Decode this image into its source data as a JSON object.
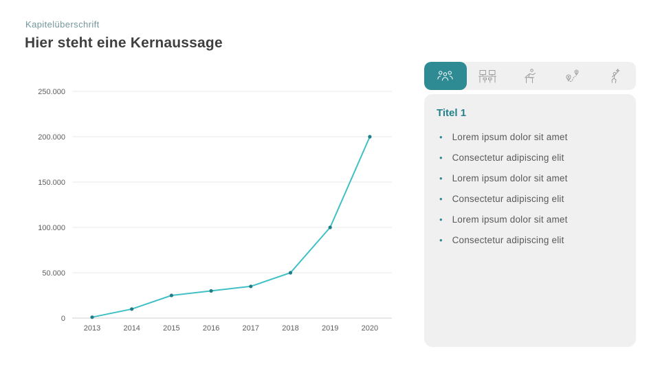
{
  "colors": {
    "accent_teal": "#2E8A93",
    "accent_teal_dark": "#23818C",
    "chart_line": "#3FBFC6",
    "chart_marker": "#1F7E86",
    "eyebrow_text": "#72969B",
    "title_text": "#3F3F3F",
    "body_text": "#595959",
    "panel_bg": "#F0F0F0",
    "gridline": "#EAEAEA",
    "baseline": "#CFCFCF"
  },
  "header": {
    "eyebrow": "Kapitelüberschrift",
    "title": "Hier steht eine Kernaussage"
  },
  "chart_data": {
    "type": "line",
    "title": "",
    "xlabel": "",
    "ylabel": "",
    "x": [
      "2013",
      "2014",
      "2015",
      "2016",
      "2017",
      "2018",
      "2019",
      "2020"
    ],
    "series": [
      {
        "name": "",
        "values": [
          1000,
          10000,
          25000,
          30000,
          35000,
          50000,
          100000,
          200000
        ]
      }
    ],
    "ylim": [
      0,
      250000
    ],
    "yticks": [
      0,
      50000,
      100000,
      150000,
      200000,
      250000
    ],
    "ytick_labels": [
      "0",
      "50.000",
      "100.000",
      "150.000",
      "200.000",
      "250.000"
    ],
    "grid": true,
    "legend": "none",
    "line_color": "#3FBFC6",
    "marker_color": "#1F7E86"
  },
  "panel": {
    "tabs": [
      {
        "icon": "team-icon",
        "selected": true
      },
      {
        "icon": "desks-icon",
        "selected": false
      },
      {
        "icon": "hurdler-icon",
        "selected": false
      },
      {
        "icon": "route-icon",
        "selected": false
      },
      {
        "icon": "goal-icon",
        "selected": false
      }
    ],
    "title": "Titel 1",
    "bullets": [
      "Lorem ipsum dolor sit amet",
      "Consectetur adipiscing elit",
      "Lorem ipsum dolor sit amet",
      "Consectetur adipiscing elit",
      "Lorem ipsum dolor sit amet",
      "Consectetur adipiscing elit"
    ]
  }
}
